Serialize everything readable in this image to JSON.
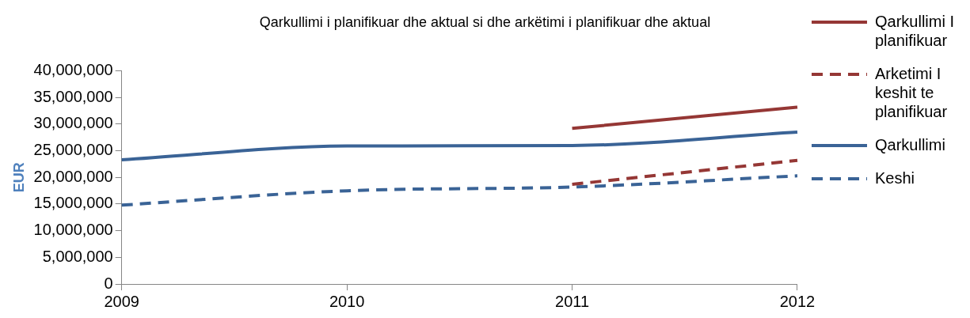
{
  "chart_data": {
    "type": "line",
    "title": "Qarkullimi i planifikuar dhe aktual si dhe arkëtimi i planifikuar dhe aktual",
    "ylabel": "EUR",
    "categories": [
      "2009",
      "2010",
      "2011",
      "2012"
    ],
    "series": [
      {
        "name": "Qarkullimi I planifikuar",
        "color": "#953735",
        "values": [
          null,
          null,
          29200000,
          33200000
        ],
        "line_style": "solid"
      },
      {
        "name": "Arketimi I keshit te planifikuar",
        "color": "#953735",
        "values": [
          null,
          null,
          18700000,
          23200000
        ],
        "line_style": "dashed"
      },
      {
        "name": "Qarkullimi",
        "color": "#3a6396",
        "values": [
          23300000,
          25900000,
          26000000,
          28500000
        ],
        "line_style": "solid"
      },
      {
        "name": "Keshi",
        "color": "#3a6396",
        "values": [
          14800000,
          17500000,
          18200000,
          20300000
        ],
        "line_style": "dashed"
      }
    ],
    "ylim": [
      0,
      40000000
    ],
    "yticks": [
      {
        "value": 0,
        "label": "0"
      },
      {
        "value": 5000000,
        "label": "5,000,000"
      },
      {
        "value": 10000000,
        "label": "10,000,000"
      },
      {
        "value": 15000000,
        "label": "15,000,000"
      },
      {
        "value": 20000000,
        "label": "20,000,000"
      },
      {
        "value": 25000000,
        "label": "25,000,000"
      },
      {
        "value": 30000000,
        "label": "30,000,000"
      },
      {
        "value": 35000000,
        "label": "35,000,000"
      },
      {
        "value": 40000000,
        "label": "40,000,000"
      }
    ],
    "grid": false,
    "legend": "right",
    "marker": "none"
  }
}
